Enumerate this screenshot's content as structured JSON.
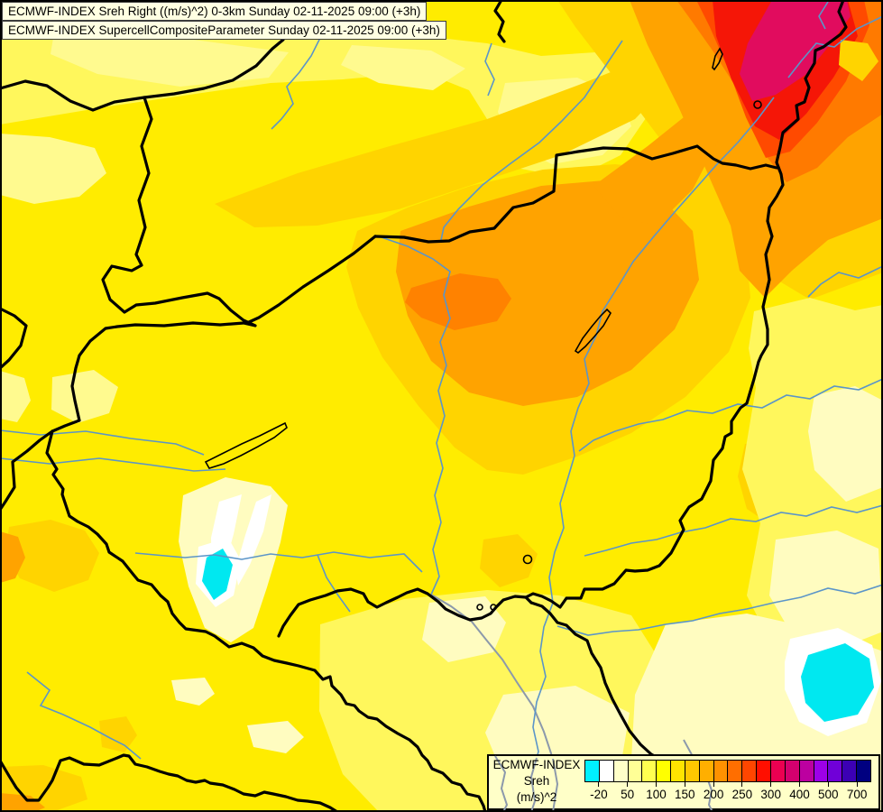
{
  "titles": {
    "line1": "ECMWF-INDEX Sreh Right ((m/s)^2) 0-3km Sunday 02-11-2025 09:00 (+3h)",
    "line2": "ECMWF-INDEX SupercellCompositeParameter Sunday 02-11-2025 09:00 (+3h)"
  },
  "legend": {
    "title_lines": [
      "ECMWF-INDEX",
      "Sreh",
      "(m/s)^2"
    ],
    "tick_labels": [
      "-20",
      "50",
      "100",
      "150",
      "200",
      "250",
      "300",
      "400",
      "500",
      "700"
    ],
    "cell_colors": [
      "#00F0FF",
      "#FFFFFF",
      "#FFFFC8",
      "#FFFF96",
      "#FFFF50",
      "#FFFF00",
      "#FFE400",
      "#FFC800",
      "#FFAF00",
      "#FF9100",
      "#FF6E00",
      "#FF4600",
      "#FF0F00",
      "#EB0051",
      "#D4006E",
      "#BC00A0",
      "#9D00E8",
      "#7000D8",
      "#3C00B4",
      "#000080"
    ]
  },
  "map": {
    "palette": {
      "base": "#FFEC00",
      "light": "#FFF75C",
      "paler": "#FFFA8F",
      "cream": "#FFFCC0",
      "white": "#FFFFFF",
      "cyan": "#00E8F0",
      "gold": "#FFD400",
      "orange": "#FFA300",
      "deep_orange": "#FF7A00",
      "core_orange": "#FF8200",
      "orange_red": "#FF4A00",
      "red": "#F51607",
      "crimson": "#E10C5E",
      "river_blue": "#5B95C8",
      "river_grey": "#8C99AB",
      "panel_bg": "#FFFFC8",
      "titlebox_bg": "#FFFFE2"
    },
    "features": [
      "country-borders",
      "rivers",
      "lake-balaton",
      "lake-neusiedl",
      "lake-tisza",
      "high-shear-hotspot-northeast",
      "low-shear-cyan-minimum-southwest",
      "low-shear-cyan-minimum-southeast"
    ]
  }
}
